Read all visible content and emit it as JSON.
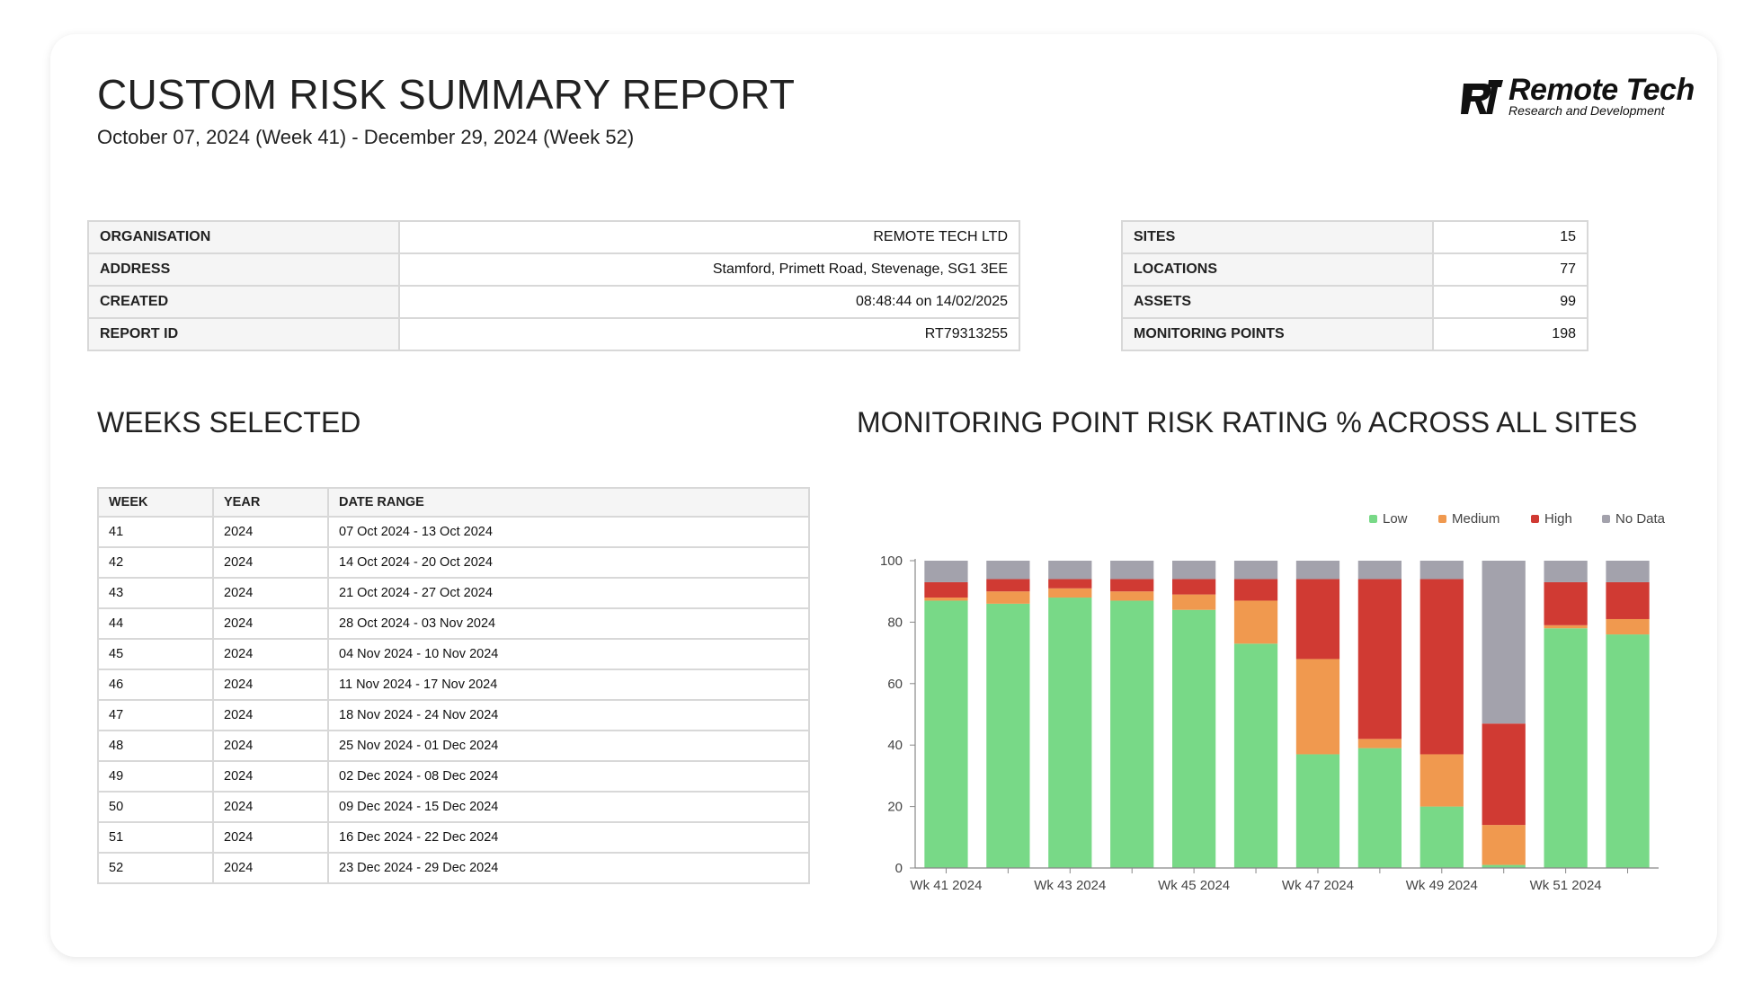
{
  "report": {
    "title": "CUSTOM RISK SUMMARY REPORT",
    "date_range": "October 07, 2024 (Week 41) - December 29, 2024 (Week 52)"
  },
  "logo": {
    "brand": "Remote Tech",
    "tagline": "Research and Development"
  },
  "info": [
    {
      "label": "ORGANISATION",
      "value": "REMOTE TECH LTD"
    },
    {
      "label": "ADDRESS",
      "value": "Stamford, Primett Road, Stevenage, SG1 3EE"
    },
    {
      "label": "CREATED",
      "value": "08:48:44 on 14/02/2025"
    },
    {
      "label": "REPORT ID",
      "value": "RT79313255"
    }
  ],
  "stats": [
    {
      "label": "SITES",
      "value": "15"
    },
    {
      "label": "LOCATIONS",
      "value": "77"
    },
    {
      "label": "ASSETS",
      "value": "99"
    },
    {
      "label": "MONITORING POINTS",
      "value": "198"
    }
  ],
  "weeks_section": {
    "title": "WEEKS SELECTED",
    "headers": [
      "WEEK",
      "YEAR",
      "DATE RANGE"
    ],
    "rows": [
      [
        "41",
        "2024",
        "07 Oct 2024 - 13 Oct 2024"
      ],
      [
        "42",
        "2024",
        "14 Oct 2024 - 20 Oct 2024"
      ],
      [
        "43",
        "2024",
        "21 Oct 2024 - 27 Oct 2024"
      ],
      [
        "44",
        "2024",
        "28 Oct 2024 - 03 Nov 2024"
      ],
      [
        "45",
        "2024",
        "04 Nov 2024 - 10 Nov 2024"
      ],
      [
        "46",
        "2024",
        "11 Nov 2024 - 17 Nov 2024"
      ],
      [
        "47",
        "2024",
        "18 Nov 2024 - 24 Nov 2024"
      ],
      [
        "48",
        "2024",
        "25 Nov 2024 - 01 Dec 2024"
      ],
      [
        "49",
        "2024",
        "02 Dec 2024 - 08 Dec 2024"
      ],
      [
        "50",
        "2024",
        "09 Dec 2024 - 15 Dec 2024"
      ],
      [
        "51",
        "2024",
        "16 Dec 2024 - 22 Dec 2024"
      ],
      [
        "52",
        "2024",
        "23 Dec 2024 - 29 Dec 2024"
      ]
    ]
  },
  "chart_data": {
    "type": "bar",
    "stacked": true,
    "title": "MONITORING POINT RISK RATING % ACROSS ALL SITES",
    "xlabel": "",
    "ylabel": "",
    "ylim": [
      0,
      100
    ],
    "yticks": [
      0,
      20,
      40,
      60,
      80,
      100
    ],
    "categories": [
      "Wk 41 2024",
      "Wk 42 2024",
      "Wk 43 2024",
      "Wk 44 2024",
      "Wk 45 2024",
      "Wk 46 2024",
      "Wk 47 2024",
      "Wk 48 2024",
      "Wk 49 2024",
      "Wk 50 2024",
      "Wk 51 2024",
      "Wk 52 2024"
    ],
    "x_tick_labels": [
      "Wk 41 2024",
      "",
      "Wk 43 2024",
      "",
      "Wk 45 2024",
      "",
      "Wk 47 2024",
      "",
      "Wk 49 2024",
      "",
      "Wk 51 2024",
      ""
    ],
    "legend_position": "top-right",
    "series": [
      {
        "name": "Low",
        "color": "#78d987",
        "values": [
          87,
          86,
          88,
          87,
          84,
          73,
          37,
          39,
          20,
          1,
          78,
          76
        ]
      },
      {
        "name": "Medium",
        "color": "#f0994f",
        "values": [
          1,
          4,
          3,
          3,
          5,
          14,
          31,
          3,
          17,
          13,
          1,
          5
        ]
      },
      {
        "name": "High",
        "color": "#d03a33",
        "values": [
          5,
          4,
          3,
          4,
          5,
          7,
          26,
          52,
          57,
          33,
          14,
          12
        ]
      },
      {
        "name": "No Data",
        "color": "#a3a2ac",
        "values": [
          7,
          6,
          6,
          6,
          6,
          6,
          6,
          6,
          6,
          53,
          7,
          7
        ]
      }
    ],
    "grid": false
  }
}
